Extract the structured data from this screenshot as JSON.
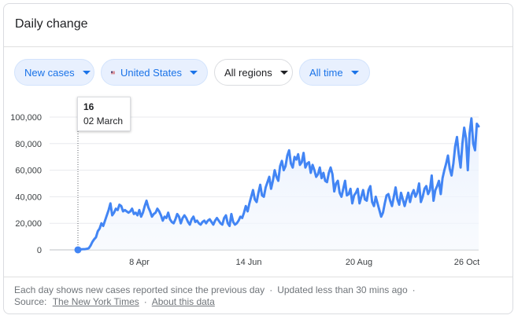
{
  "header": {
    "title": "Daily change"
  },
  "filters": {
    "metric": "New cases",
    "country": "United States",
    "region": "All regions",
    "range": "All time"
  },
  "tooltip": {
    "value": "16",
    "date": "02 March"
  },
  "chart_data": {
    "type": "area",
    "series": [
      {
        "name": "New cases",
        "color": "#4285f4"
      }
    ],
    "ylim": [
      0,
      100000
    ],
    "y_ticks": [
      "100,000",
      "80,000",
      "60,000",
      "40,000",
      "20,000",
      "0"
    ],
    "x_ticks": [
      "8 Apr",
      "14 Jun",
      "20 Aug",
      "26 Oct"
    ],
    "highlight_point": {
      "date": "02 March",
      "value": 16
    },
    "values": [
      16,
      300,
      450,
      500,
      550,
      800,
      1200,
      3200,
      6000,
      8000,
      9500,
      14000,
      16000,
      20000,
      18000,
      22000,
      26000,
      30000,
      35000,
      26000,
      28000,
      31000,
      30000,
      34000,
      33000,
      29000,
      30000,
      29000,
      28000,
      29000,
      31000,
      27000,
      28000,
      26000,
      30000,
      25000,
      28000,
      33000,
      37000,
      32000,
      29000,
      25000,
      27000,
      28000,
      31000,
      29000,
      26000,
      22000,
      25000,
      24000,
      28000,
      23000,
      21000,
      20000,
      23000,
      27000,
      25000,
      20000,
      24000,
      26000,
      24000,
      21000,
      19000,
      23000,
      25000,
      21000,
      22000,
      20000,
      19000,
      21000,
      22000,
      20000,
      22000,
      23000,
      21000,
      19000,
      22000,
      24000,
      22000,
      20000,
      19000,
      24000,
      26000,
      20000,
      18000,
      27000,
      21000,
      19000,
      20000,
      22000,
      25000,
      24000,
      28000,
      33000,
      29000,
      35000,
      40000,
      45000,
      38000,
      36000,
      43000,
      49000,
      41000,
      40000,
      47000,
      51000,
      55000,
      46000,
      52000,
      60000,
      55000,
      52000,
      63000,
      67000,
      60000,
      63000,
      71000,
      75000,
      65000,
      62000,
      70000,
      68000,
      72000,
      64000,
      66000,
      73000,
      62000,
      65000,
      66000,
      58000,
      64000,
      60000,
      55000,
      57000,
      62000,
      54000,
      58000,
      52000,
      51000,
      58000,
      62000,
      57000,
      44000,
      50000,
      52000,
      43000,
      40000,
      46000,
      52000,
      41000,
      42000,
      46000,
      35000,
      41000,
      43000,
      46000,
      35000,
      40000,
      45000,
      38000,
      37000,
      45000,
      48000,
      36000,
      33000,
      40000,
      35000,
      30000,
      25000,
      28000,
      35000,
      41000,
      42000,
      37000,
      33000,
      40000,
      47000,
      38000,
      34000,
      43000,
      38000,
      33000,
      38000,
      43000,
      36000,
      42000,
      45000,
      40000,
      43000,
      50000,
      36000,
      40000,
      46000,
      48000,
      42000,
      45000,
      56000,
      37000,
      45000,
      48000,
      52000,
      42000,
      54000,
      60000,
      65000,
      71000,
      61000,
      56000,
      65000,
      78000,
      85000,
      72000,
      62000,
      80000,
      92000,
      84000,
      60000,
      88000,
      99000,
      80000,
      75000,
      95000,
      93000
    ]
  },
  "footer": {
    "note": "Each day shows new cases reported since the previous day",
    "updated": "Updated less than 30 mins ago",
    "source_label": "Source:",
    "source_link": "The New York Times",
    "about_link": "About this data"
  },
  "colors": {
    "accent": "#1a73e8",
    "line": "#4285f4",
    "area": "#e8f0fe"
  }
}
